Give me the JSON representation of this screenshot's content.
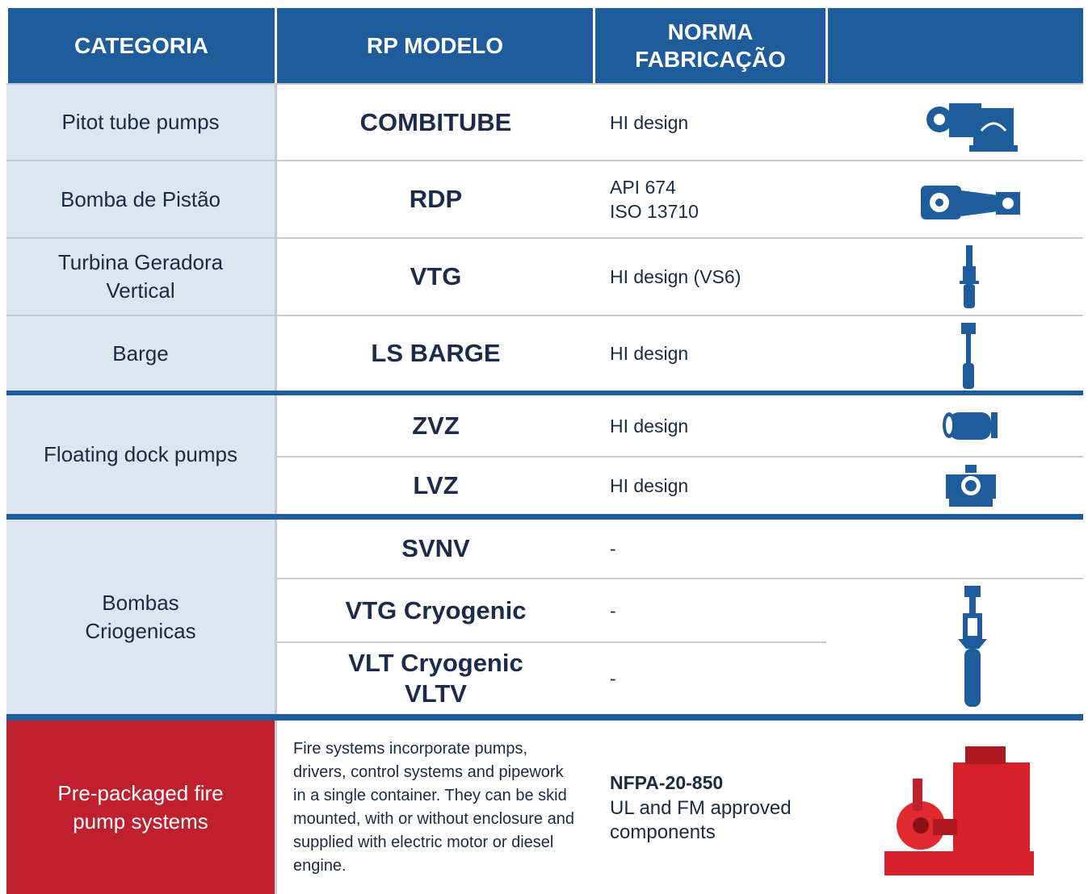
{
  "header": {
    "columns": [
      "CATEGORIA",
      "RP MODELO",
      "NORMA\nFABRICAÇÃO"
    ]
  },
  "groups": [
    {
      "category": "Pitot tube pumps",
      "models": [
        {
          "model": "COMBITUBE",
          "norm": "HI design"
        }
      ]
    },
    {
      "category": "Bomba de Pistão",
      "models": [
        {
          "model": "RDP",
          "norm": "API 674\nISO 13710"
        }
      ]
    },
    {
      "category": "Turbina Geradora\nVertical",
      "models": [
        {
          "model": "VTG",
          "norm": "HI design (VS6)"
        }
      ]
    },
    {
      "category": "Barge",
      "models": [
        {
          "model": "LS BARGE",
          "norm": "HI design"
        }
      ]
    },
    {
      "category": "Floating dock pumps",
      "models": [
        {
          "model": "ZVZ",
          "norm": "HI design"
        },
        {
          "model": "LVZ",
          "norm": "HI design"
        }
      ]
    },
    {
      "category": "Bombas\nCriogenicas",
      "models": [
        {
          "model": "SVNV",
          "norm": "-"
        },
        {
          "model": "VTG Cryogenic",
          "norm": "-"
        },
        {
          "model": "VLT Cryogenic\nVLTV",
          "norm": "-"
        }
      ]
    }
  ],
  "fire": {
    "category": "Pre-packaged fire pump systems",
    "description": "Fire systems incorporate pumps, drivers, control systems and pipework in a single container. They can be skid mounted, with or without enclosure and supplied with electric motor or diesel engine.",
    "norm_title": "NFPA-20-850",
    "norm_text": "UL and FM approved components"
  }
}
